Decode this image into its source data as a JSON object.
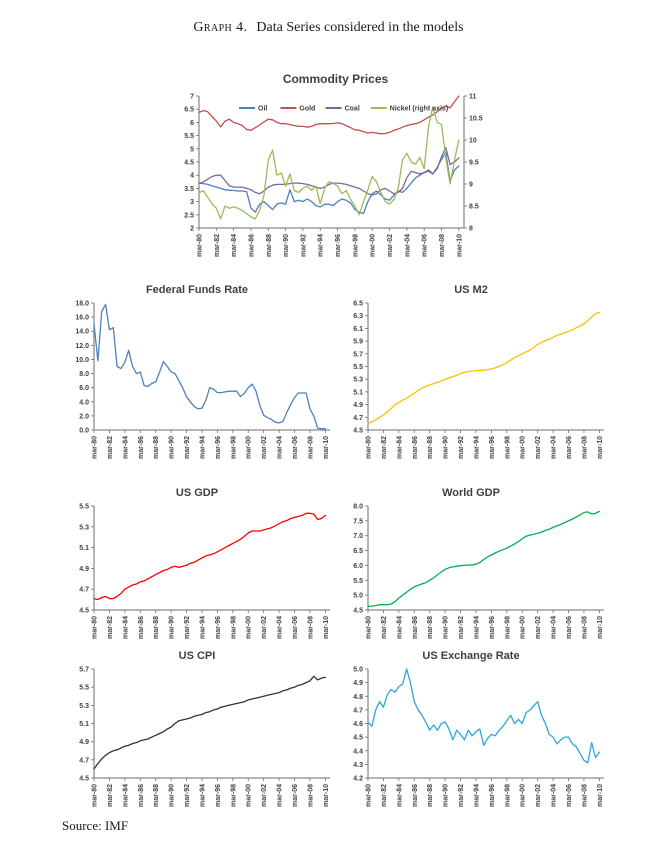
{
  "page": {
    "heading_label": "Graph 4.",
    "heading_caption": "Data Series considered in the models",
    "source": "Source: IMF"
  },
  "colors": {
    "oil": "#4F81BD",
    "gold": "#C0504D",
    "coal": "#8064A2",
    "nickel": "#9BBB59",
    "fed_funds": "#4F81BD",
    "m2": "#FFC000",
    "us_gdp": "#FF0000",
    "world_gdp": "#00B050",
    "cpi": "#31313F",
    "exchange": "#2EA6DC",
    "axis": "#6E6E6E",
    "tick_text": "#404040"
  },
  "x_labels": [
    "mar-80",
    "mar-82",
    "mar-84",
    "mar-86",
    "mar-88",
    "mar-90",
    "mar-92",
    "mar-94",
    "mar-96",
    "mar-98",
    "mar-00",
    "mar-02",
    "mar-04",
    "mar-06",
    "mar-08",
    "mar-10"
  ],
  "chart_data": [
    {
      "type": "line",
      "id": "commodity-prices",
      "title": "Commodity Prices",
      "ylim": [
        2,
        7
      ],
      "yticks": [
        "2",
        "2.5",
        "3",
        "3.5",
        "4",
        "4.5",
        "5",
        "5.5",
        "6",
        "6.5",
        "7"
      ],
      "y2lim": [
        8,
        11
      ],
      "y2ticks": [
        "8",
        "8.5",
        "9",
        "9.5",
        "10",
        "10.5",
        "11"
      ],
      "legend": [
        {
          "label": "Oil",
          "color": "#4F81BD"
        },
        {
          "label": "Gold",
          "color": "#C0504D"
        },
        {
          "label": "Coal",
          "color": "#8064A2"
        },
        {
          "label": "Nickel (right axis)",
          "color": "#9BBB59"
        }
      ],
      "series": [
        {
          "name": "Oil",
          "color": "#4F81BD",
          "axis": "left",
          "values": [
            3.7,
            3.68,
            3.65,
            3.6,
            3.55,
            3.5,
            3.45,
            3.43,
            3.42,
            3.4,
            3.4,
            3.38,
            2.75,
            2.6,
            2.9,
            3.0,
            2.85,
            2.7,
            2.9,
            2.95,
            2.9,
            3.45,
            3.0,
            3.05,
            3.0,
            3.1,
            3.0,
            2.85,
            2.8,
            2.9,
            2.9,
            2.85,
            3.0,
            3.1,
            3.05,
            2.95,
            2.7,
            2.6,
            2.55,
            3.0,
            3.3,
            3.4,
            3.25,
            3.1,
            3.05,
            3.25,
            3.4,
            3.35,
            3.5,
            3.7,
            3.9,
            4.0,
            4.1,
            4.2,
            4.05,
            4.3,
            4.6,
            4.85,
            3.78,
            4.2,
            4.35
          ]
        },
        {
          "name": "Gold",
          "color": "#C0504D",
          "axis": "left",
          "values": [
            6.38,
            6.45,
            6.4,
            6.22,
            6.05,
            5.83,
            6.05,
            6.12,
            6.0,
            5.95,
            5.88,
            5.73,
            5.7,
            5.8,
            5.9,
            6.02,
            6.12,
            6.1,
            6.0,
            5.95,
            5.95,
            5.92,
            5.88,
            5.85,
            5.85,
            5.82,
            5.85,
            5.92,
            5.95,
            5.95,
            5.95,
            5.96,
            5.98,
            5.95,
            5.88,
            5.8,
            5.72,
            5.7,
            5.65,
            5.6,
            5.62,
            5.6,
            5.57,
            5.58,
            5.62,
            5.7,
            5.75,
            5.82,
            5.88,
            5.92,
            5.95,
            6.0,
            6.1,
            6.2,
            6.28,
            6.4,
            6.55,
            6.62,
            6.55,
            6.78,
            7.0
          ]
        },
        {
          "name": "Coal",
          "color": "#8064A2",
          "axis": "left",
          "values": [
            3.68,
            3.75,
            3.85,
            3.95,
            4.0,
            4.0,
            3.8,
            3.6,
            3.55,
            3.55,
            3.55,
            3.5,
            3.45,
            3.35,
            3.3,
            3.4,
            3.55,
            3.62,
            3.65,
            3.65,
            3.65,
            3.68,
            3.7,
            3.7,
            3.68,
            3.65,
            3.6,
            3.55,
            3.5,
            3.55,
            3.65,
            3.7,
            3.7,
            3.68,
            3.65,
            3.6,
            3.55,
            3.5,
            3.4,
            3.3,
            3.25,
            3.3,
            3.45,
            3.5,
            3.4,
            3.3,
            3.35,
            3.5,
            3.9,
            4.15,
            4.1,
            4.05,
            4.1,
            4.15,
            4.05,
            4.25,
            4.7,
            5.05,
            4.4,
            4.5,
            4.65
          ]
        },
        {
          "name": "Nickel (right axis)",
          "color": "#9BBB59",
          "axis": "right",
          "values": [
            8.8,
            8.85,
            8.7,
            8.55,
            8.45,
            8.21,
            8.5,
            8.45,
            8.48,
            8.45,
            8.4,
            8.33,
            8.25,
            8.21,
            8.4,
            8.75,
            9.55,
            9.77,
            9.2,
            9.25,
            8.95,
            9.23,
            8.85,
            8.81,
            8.9,
            8.95,
            8.85,
            8.95,
            8.55,
            8.9,
            9.05,
            9.02,
            8.95,
            8.78,
            8.85,
            8.65,
            8.5,
            8.3,
            8.6,
            8.87,
            9.17,
            9.05,
            8.8,
            8.6,
            8.54,
            8.65,
            8.9,
            9.55,
            9.7,
            9.5,
            9.45,
            9.6,
            9.35,
            10.3,
            10.75,
            10.4,
            10.35,
            9.6,
            9.0,
            9.55,
            10.0
          ]
        }
      ]
    },
    {
      "type": "line",
      "id": "federal-funds-rate",
      "title": "Federal Funds Rate",
      "ylim": [
        0,
        18
      ],
      "yticks": [
        "0.0",
        "2.0",
        "4.0",
        "6.0",
        "8.0",
        "10.0",
        "12.0",
        "14.0",
        "16.0",
        "18.0"
      ],
      "series": [
        {
          "name": "Federal Funds Rate",
          "color": "#4F81BD",
          "values": [
            15.0,
            9.8,
            16.8,
            17.8,
            14.2,
            14.5,
            9.0,
            8.7,
            9.6,
            11.3,
            9.0,
            8.0,
            8.2,
            6.3,
            6.2,
            6.6,
            6.8,
            8.2,
            9.7,
            9.0,
            8.25,
            8.0,
            7.0,
            6.0,
            4.7,
            4.0,
            3.3,
            3.0,
            3.1,
            4.2,
            6.0,
            5.8,
            5.3,
            5.3,
            5.4,
            5.5,
            5.5,
            5.5,
            4.75,
            5.2,
            6.0,
            6.5,
            5.5,
            3.5,
            2.1,
            1.75,
            1.5,
            1.1,
            1.0,
            1.2,
            2.5,
            3.6,
            4.6,
            5.25,
            5.25,
            5.25,
            3.0,
            2.0,
            0.25,
            0.15,
            0.2
          ]
        }
      ]
    },
    {
      "type": "line",
      "id": "us-m2",
      "title": "US M2",
      "ylim": [
        4.5,
        6.5
      ],
      "yticks": [
        "4.5",
        "4.7",
        "4.9",
        "5.1",
        "5.3",
        "5.5",
        "5.7",
        "5.9",
        "6.1",
        "6.3",
        "6.5"
      ],
      "series": [
        {
          "name": "US M2",
          "color": "#FFC000",
          "values": [
            4.6,
            4.63,
            4.66,
            4.7,
            4.74,
            4.78,
            4.84,
            4.9,
            4.93,
            4.97,
            5.0,
            5.04,
            5.08,
            5.12,
            5.16,
            5.19,
            5.21,
            5.23,
            5.25,
            5.27,
            5.3,
            5.32,
            5.34,
            5.36,
            5.39,
            5.41,
            5.42,
            5.43,
            5.43,
            5.44,
            5.44,
            5.45,
            5.46,
            5.48,
            5.5,
            5.53,
            5.56,
            5.6,
            5.64,
            5.67,
            5.7,
            5.73,
            5.76,
            5.8,
            5.85,
            5.88,
            5.91,
            5.93,
            5.96,
            5.99,
            6.01,
            6.03,
            6.05,
            6.08,
            6.11,
            6.14,
            6.17,
            6.22,
            6.28,
            6.33,
            6.35
          ]
        }
      ]
    },
    {
      "type": "line",
      "id": "us-gdp",
      "title": "US GDP",
      "ylim": [
        4.5,
        5.5
      ],
      "yticks": [
        "4.5",
        "4.7",
        "4.9",
        "5.1",
        "5.3",
        "5.5"
      ],
      "series": [
        {
          "name": "US GDP",
          "color": "#FF0000",
          "values": [
            4.61,
            4.6,
            4.62,
            4.63,
            4.61,
            4.61,
            4.63,
            4.66,
            4.7,
            4.72,
            4.74,
            4.75,
            4.77,
            4.78,
            4.8,
            4.82,
            4.84,
            4.86,
            4.88,
            4.89,
            4.91,
            4.92,
            4.91,
            4.92,
            4.93,
            4.95,
            4.96,
            4.98,
            5.0,
            5.02,
            5.03,
            5.04,
            5.06,
            5.08,
            5.1,
            5.12,
            5.14,
            5.16,
            5.18,
            5.21,
            5.24,
            5.26,
            5.26,
            5.26,
            5.27,
            5.28,
            5.29,
            5.31,
            5.33,
            5.35,
            5.36,
            5.38,
            5.39,
            5.4,
            5.41,
            5.43,
            5.43,
            5.42,
            5.37,
            5.38,
            5.41
          ]
        }
      ]
    },
    {
      "type": "line",
      "id": "world-gdp",
      "title": "World GDP",
      "ylim": [
        4.5,
        8.0
      ],
      "yticks": [
        "4.5",
        "5.0",
        "5.5",
        "6.0",
        "6.5",
        "7.0",
        "7.5",
        "8.0"
      ],
      "series": [
        {
          "name": "World GDP",
          "color": "#00B050",
          "values": [
            4.62,
            4.63,
            4.65,
            4.68,
            4.68,
            4.68,
            4.7,
            4.78,
            4.9,
            5.0,
            5.1,
            5.2,
            5.28,
            5.33,
            5.38,
            5.42,
            5.5,
            5.58,
            5.68,
            5.78,
            5.87,
            5.92,
            5.95,
            5.97,
            5.99,
            6.0,
            6.01,
            6.02,
            6.04,
            6.1,
            6.2,
            6.28,
            6.35,
            6.42,
            6.48,
            6.53,
            6.58,
            6.65,
            6.72,
            6.8,
            6.9,
            6.98,
            7.02,
            7.05,
            7.08,
            7.12,
            7.18,
            7.22,
            7.28,
            7.33,
            7.38,
            7.44,
            7.5,
            7.56,
            7.63,
            7.7,
            7.78,
            7.8,
            7.73,
            7.75,
            7.82
          ]
        }
      ]
    },
    {
      "type": "line",
      "id": "us-cpi",
      "title": "US CPI",
      "ylim": [
        4.5,
        5.7
      ],
      "yticks": [
        "4.5",
        "4.7",
        "4.9",
        "5.1",
        "5.3",
        "5.5",
        "5.7"
      ],
      "series": [
        {
          "name": "US CPI",
          "color": "#31313F",
          "values": [
            4.6,
            4.66,
            4.71,
            4.75,
            4.78,
            4.8,
            4.81,
            4.83,
            4.85,
            4.86,
            4.88,
            4.89,
            4.91,
            4.92,
            4.93,
            4.95,
            4.97,
            4.99,
            5.01,
            5.04,
            5.06,
            5.1,
            5.13,
            5.14,
            5.15,
            5.16,
            5.18,
            5.19,
            5.2,
            5.22,
            5.23,
            5.25,
            5.26,
            5.28,
            5.29,
            5.3,
            5.31,
            5.32,
            5.33,
            5.34,
            5.36,
            5.37,
            5.38,
            5.39,
            5.4,
            5.41,
            5.42,
            5.43,
            5.44,
            5.46,
            5.47,
            5.49,
            5.5,
            5.52,
            5.53,
            5.55,
            5.57,
            5.62,
            5.58,
            5.6,
            5.61
          ]
        }
      ]
    },
    {
      "type": "line",
      "id": "us-exchange-rate",
      "title": "US Exchange Rate",
      "ylim": [
        4.2,
        5.0
      ],
      "yticks": [
        "4.2",
        "4.3",
        "4.4",
        "4.5",
        "4.6",
        "4.7",
        "4.8",
        "4.9",
        "5.0"
      ],
      "series": [
        {
          "name": "US Exchange Rate",
          "color": "#2EA6DC",
          "values": [
            4.61,
            4.58,
            4.7,
            4.76,
            4.72,
            4.81,
            4.85,
            4.83,
            4.87,
            4.89,
            5.0,
            4.9,
            4.76,
            4.7,
            4.66,
            4.61,
            4.55,
            4.59,
            4.55,
            4.6,
            4.61,
            4.56,
            4.48,
            4.55,
            4.52,
            4.48,
            4.55,
            4.51,
            4.54,
            4.56,
            4.44,
            4.49,
            4.52,
            4.51,
            4.55,
            4.58,
            4.62,
            4.66,
            4.6,
            4.63,
            4.6,
            4.68,
            4.7,
            4.73,
            4.76,
            4.66,
            4.6,
            4.52,
            4.5,
            4.45,
            4.48,
            4.5,
            4.5,
            4.45,
            4.43,
            4.38,
            4.33,
            4.31,
            4.46,
            4.35,
            4.39
          ]
        }
      ]
    }
  ]
}
